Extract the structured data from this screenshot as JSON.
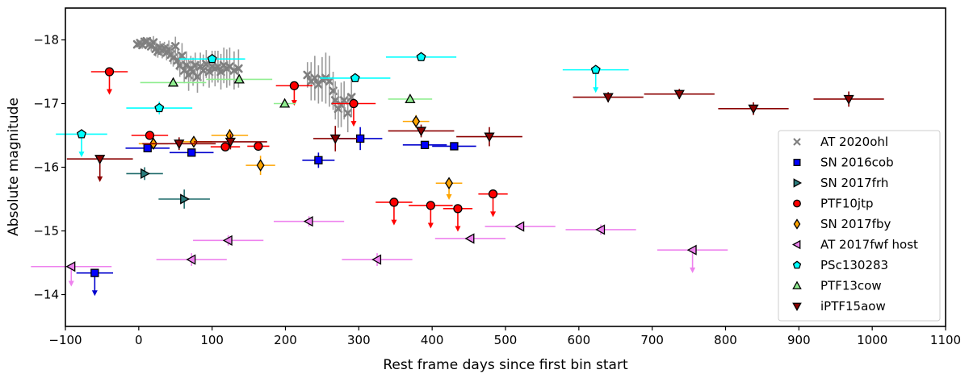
{
  "chart_data": {
    "type": "scatter",
    "title": "",
    "xlabel": "Rest frame days since first bin start",
    "ylabel": "Absolute magnitude",
    "xlim": [
      -100,
      1100
    ],
    "ylim": [
      -13.5,
      -18.5
    ],
    "xticks": [
      -100,
      0,
      100,
      200,
      300,
      400,
      500,
      600,
      700,
      800,
      900,
      1000,
      1100
    ],
    "yticks": [
      -18,
      -17,
      -16,
      -15,
      -14
    ],
    "xtick_labels": [
      "−100",
      "0",
      "100",
      "200",
      "300",
      "400",
      "500",
      "600",
      "700",
      "800",
      "900",
      "1000",
      "1100"
    ],
    "ytick_labels": [
      "−18",
      "−17",
      "−16",
      "−15",
      "−14"
    ],
    "legend_position": "center-right",
    "series": [
      {
        "name": "AT 2020ohl",
        "marker": "x",
        "color": "#7f7f7f",
        "errcolor": "#9a9a9a",
        "points": [
          {
            "x": -2,
            "y": -17.93,
            "e": 0.05
          },
          {
            "x": 2,
            "y": -17.95,
            "e": 0.05
          },
          {
            "x": 5,
            "y": -17.92,
            "e": 0.06
          },
          {
            "x": 8,
            "y": -17.97,
            "e": 0.05
          },
          {
            "x": 11,
            "y": -17.98,
            "e": 0.06
          },
          {
            "x": 14,
            "y": -17.93,
            "e": 0.07
          },
          {
            "x": 17,
            "y": -17.9,
            "e": 0.08
          },
          {
            "x": 20,
            "y": -17.96,
            "e": 0.1
          },
          {
            "x": 23,
            "y": -17.86,
            "e": 0.12
          },
          {
            "x": 26,
            "y": -17.82,
            "e": 0.1
          },
          {
            "x": 29,
            "y": -17.88,
            "e": 0.1
          },
          {
            "x": 32,
            "y": -17.83,
            "e": 0.12
          },
          {
            "x": 35,
            "y": -17.87,
            "e": 0.1
          },
          {
            "x": 38,
            "y": -17.8,
            "e": 0.12
          },
          {
            "x": 41,
            "y": -17.85,
            "e": 0.14
          },
          {
            "x": 44,
            "y": -17.77,
            "e": 0.15
          },
          {
            "x": 47,
            "y": -17.72,
            "e": 0.14
          },
          {
            "x": 50,
            "y": -17.9,
            "e": 0.15
          },
          {
            "x": 53,
            "y": -17.68,
            "e": 0.16
          },
          {
            "x": 56,
            "y": -17.6,
            "e": 0.18
          },
          {
            "x": 59,
            "y": -17.75,
            "e": 0.2
          },
          {
            "x": 62,
            "y": -17.52,
            "e": 0.2
          },
          {
            "x": 65,
            "y": -17.6,
            "e": 0.22
          },
          {
            "x": 68,
            "y": -17.45,
            "e": 0.25
          },
          {
            "x": 71,
            "y": -17.55,
            "e": 0.2
          },
          {
            "x": 74,
            "y": -17.5,
            "e": 0.22
          },
          {
            "x": 77,
            "y": -17.6,
            "e": 0.2
          },
          {
            "x": 80,
            "y": -17.42,
            "e": 0.25
          },
          {
            "x": 84,
            "y": -17.58,
            "e": 0.22
          },
          {
            "x": 88,
            "y": -17.52,
            "e": 0.25
          },
          {
            "x": 92,
            "y": -17.62,
            "e": 0.22
          },
          {
            "x": 96,
            "y": -17.5,
            "e": 0.25
          },
          {
            "x": 100,
            "y": -17.58,
            "e": 0.25
          },
          {
            "x": 104,
            "y": -17.55,
            "e": 0.28
          },
          {
            "x": 108,
            "y": -17.58,
            "e": 0.25
          },
          {
            "x": 112,
            "y": -17.5,
            "e": 0.28
          },
          {
            "x": 116,
            "y": -17.6,
            "e": 0.28
          },
          {
            "x": 120,
            "y": -17.55,
            "e": 0.3
          },
          {
            "x": 124,
            "y": -17.58,
            "e": 0.3
          },
          {
            "x": 130,
            "y": -17.52,
            "e": 0.3
          },
          {
            "x": 136,
            "y": -17.55,
            "e": 0.3
          },
          {
            "x": 230,
            "y": -17.45,
            "e": 0.2
          },
          {
            "x": 235,
            "y": -17.35,
            "e": 0.3
          },
          {
            "x": 240,
            "y": -17.4,
            "e": 0.35
          },
          {
            "x": 245,
            "y": -17.3,
            "e": 0.3
          },
          {
            "x": 250,
            "y": -17.38,
            "e": 0.35
          },
          {
            "x": 255,
            "y": -17.4,
            "e": 0.4
          },
          {
            "x": 260,
            "y": -17.35,
            "e": 0.4
          },
          {
            "x": 265,
            "y": -17.2,
            "e": 0.3
          },
          {
            "x": 268,
            "y": -17.05,
            "e": 0.3
          },
          {
            "x": 272,
            "y": -16.92,
            "e": 0.3
          },
          {
            "x": 276,
            "y": -16.98,
            "e": 0.35
          },
          {
            "x": 280,
            "y": -17.05,
            "e": 0.3
          },
          {
            "x": 285,
            "y": -16.85,
            "e": 0.3
          },
          {
            "x": 290,
            "y": -17.1,
            "e": 0.3
          }
        ]
      },
      {
        "name": "SN 2016cob",
        "marker": "s",
        "color": "#0000ff",
        "errcolor": "#0000cd",
        "points": [
          {
            "x": 12,
            "y": -16.3,
            "xe": 30,
            "e": 0.05
          },
          {
            "x": 72,
            "y": -16.23,
            "xe": 30,
            "e": 0.05
          },
          {
            "x": 245,
            "y": -16.11,
            "xe": 22,
            "e": 0.12
          },
          {
            "x": 302,
            "y": -16.45,
            "xe": 30,
            "e": 0.18
          },
          {
            "x": 390,
            "y": -16.35,
            "xe": 30,
            "e": 0.06
          },
          {
            "x": 430,
            "y": -16.33,
            "xe": 30,
            "e": 0.06
          },
          {
            "x": -60,
            "y": -14.34,
            "xe": 25,
            "up": 0.35
          }
        ]
      },
      {
        "name": "SN 2017frh",
        "marker": ">",
        "color": "#2a7d7d",
        "errcolor": "#1f6b6b",
        "points": [
          {
            "x": 8,
            "y": -15.9,
            "xe": 25,
            "e": 0.1
          },
          {
            "x": 62,
            "y": -15.5,
            "xe": 35,
            "e": 0.15
          }
        ]
      },
      {
        "name": "PTF10jtp",
        "marker": "o",
        "color": "#ff0000",
        "errcolor": "#ff0000",
        "points": [
          {
            "x": -40,
            "y": -17.5,
            "xe": 25,
            "up": 0.35
          },
          {
            "x": 15,
            "y": -16.5,
            "xe": 25,
            "e": 0.05
          },
          {
            "x": 118,
            "y": -16.32,
            "xe": 20,
            "e": 0.05
          },
          {
            "x": 163,
            "y": -16.33,
            "xe": 15,
            "e": 0.05
          },
          {
            "x": 212,
            "y": -17.28,
            "xe": 25,
            "up": 0.3
          },
          {
            "x": 293,
            "y": -17.0,
            "xe": 30,
            "up": 0.35
          },
          {
            "x": 348,
            "y": -15.45,
            "xe": 25,
            "up": 0.35
          },
          {
            "x": 398,
            "y": -15.4,
            "xe": 30,
            "up": 0.35
          },
          {
            "x": 435,
            "y": -15.35,
            "xe": 20,
            "up": 0.35
          },
          {
            "x": 483,
            "y": -15.58,
            "xe": 20,
            "up": 0.35
          }
        ]
      },
      {
        "name": "SN 2017fby",
        "marker": "d",
        "color": "#ffa500",
        "errcolor": "#ffa500",
        "points": [
          {
            "x": 20,
            "y": -16.37,
            "xe": 20,
            "e": 0.08
          },
          {
            "x": 75,
            "y": -16.4,
            "xe": 25,
            "e": 0.08
          },
          {
            "x": 124,
            "y": -16.5,
            "xe": 25,
            "e": 0.1
          },
          {
            "x": 166,
            "y": -16.03,
            "xe": 20,
            "e": 0.15
          },
          {
            "x": 378,
            "y": -16.72,
            "xe": 18,
            "e": 0.1
          },
          {
            "x": 423,
            "y": -15.75,
            "xe": 18,
            "up": 0.25
          }
        ]
      },
      {
        "name": "AT 2017fwf host",
        "marker": "<",
        "color": "#ee82ee",
        "errcolor": "#ee82ee",
        "points": [
          {
            "x": -92,
            "y": -14.44,
            "xe": 55,
            "up": 0.3
          },
          {
            "x": 72,
            "y": -14.55,
            "xe": 48,
            "e": 0.1
          },
          {
            "x": 122,
            "y": -14.85,
            "xe": 48,
            "e": 0.08
          },
          {
            "x": 232,
            "y": -15.15,
            "xe": 48,
            "e": 0.08
          },
          {
            "x": 325,
            "y": -14.55,
            "xe": 48,
            "e": 0.1
          },
          {
            "x": 452,
            "y": -14.88,
            "xe": 48,
            "e": 0.05
          },
          {
            "x": 520,
            "y": -15.07,
            "xe": 48,
            "e": 0.05
          },
          {
            "x": 630,
            "y": -15.02,
            "xe": 48,
            "e": 0.08
          },
          {
            "x": 755,
            "y": -14.7,
            "xe": 48,
            "up": 0.35
          }
        ]
      },
      {
        "name": "PSc130283",
        "marker": "p",
        "color": "#00ffff",
        "errcolor": "#00ffff",
        "points": [
          {
            "x": -78,
            "y": -16.52,
            "xe": 35,
            "up": 0.35
          },
          {
            "x": 28,
            "y": -16.93,
            "xe": 45,
            "e": 0.1
          },
          {
            "x": 100,
            "y": -17.7,
            "xe": 45,
            "e": 0.05
          },
          {
            "x": 295,
            "y": -17.4,
            "xe": 48,
            "e": 0.05
          },
          {
            "x": 385,
            "y": -17.73,
            "xe": 48,
            "e": 0.05
          },
          {
            "x": 623,
            "y": -17.53,
            "xe": 45,
            "up": 0.35
          }
        ]
      },
      {
        "name": "PTF13cow",
        "marker": "^",
        "color": "#90ee90",
        "errcolor": "#90ee90",
        "points": [
          {
            "x": 47,
            "y": -17.33,
            "xe": 45,
            "e": 0.05
          },
          {
            "x": 137,
            "y": -17.38,
            "xe": 45,
            "e": 0.05
          },
          {
            "x": 199,
            "y": -17.0,
            "xe": 15,
            "e": 0.05
          },
          {
            "x": 370,
            "y": -17.07,
            "xe": 30,
            "e": 0.05
          }
        ]
      },
      {
        "name": "iPTF15aow",
        "marker": "v",
        "color": "#8b0000",
        "errcolor": "#8b0000",
        "points": [
          {
            "x": -53,
            "y": -16.13,
            "xe": 45,
            "up": 0.35
          },
          {
            "x": 55,
            "y": -16.37,
            "xe": 50,
            "e": 0.1
          },
          {
            "x": 125,
            "y": -16.4,
            "xe": 50,
            "e": 0.12
          },
          {
            "x": 268,
            "y": -16.45,
            "xe": 30,
            "e": 0.2
          },
          {
            "x": 385,
            "y": -16.57,
            "xe": 45,
            "e": 0.1
          },
          {
            "x": 478,
            "y": -16.48,
            "xe": 45,
            "e": 0.15
          },
          {
            "x": 640,
            "y": -17.1,
            "xe": 48,
            "e": 0.08
          },
          {
            "x": 737,
            "y": -17.15,
            "xe": 48,
            "e": 0.08
          },
          {
            "x": 838,
            "y": -16.92,
            "xe": 48,
            "e": 0.1
          },
          {
            "x": 968,
            "y": -17.07,
            "xe": 48,
            "e": 0.12
          }
        ]
      }
    ]
  }
}
